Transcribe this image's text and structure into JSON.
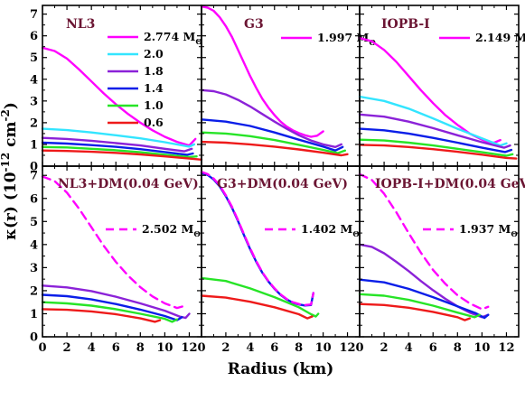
{
  "chart_data": {
    "type": "line",
    "xlabel": "Radius (km)",
    "ylabel": "κ(r) (10-12 cm-2)",
    "ylabel_parts": {
      "kappa": "κ(r) (10",
      "exp1": "-12",
      "unit": " cm",
      "exp2": "-2",
      "close": ")"
    },
    "xlim": [
      0,
      13
    ],
    "ylim": [
      0,
      7.4
    ],
    "x_ticks": [
      0,
      2,
      4,
      6,
      8,
      10,
      12
    ],
    "y_ticks_top": [
      0,
      1,
      2,
      3,
      4,
      5,
      6,
      7
    ],
    "y_ticks_bottom": [
      0,
      1,
      2,
      3,
      4,
      5,
      6,
      7
    ],
    "msun": "M",
    "msun_sub": "Θ",
    "colors": {
      "magenta": "#ff00ff",
      "cyan": "#33e5ff",
      "purple": "#8b22d8",
      "blue": "#0a1ee8",
      "green": "#27e427",
      "red": "#ee1a1a"
    },
    "panels": [
      {
        "title": "NL3",
        "legend": [
          {
            "label": "2.774",
            "color": "magenta"
          },
          {
            "label": "2.0",
            "color": "cyan"
          },
          {
            "label": "1.8",
            "color": "purple"
          },
          {
            "label": "1.4",
            "color": "blue"
          },
          {
            "label": "1.0",
            "color": "green"
          },
          {
            "label": "0.6",
            "color": "red"
          }
        ],
        "series": [
          {
            "color": "magenta",
            "dash": false,
            "x": [
              0,
              1,
              2,
              3,
              4,
              5,
              6,
              7,
              8,
              9,
              10,
              11,
              12,
              12.5
            ],
            "y": [
              5.45,
              5.3,
              4.95,
              4.45,
              3.9,
              3.35,
              2.85,
              2.4,
              2.0,
              1.65,
              1.35,
              1.12,
              0.95,
              1.25
            ]
          },
          {
            "color": "cyan",
            "dash": false,
            "x": [
              0,
              2,
              4,
              6,
              8,
              10,
              12,
              12.4
            ],
            "y": [
              1.72,
              1.66,
              1.55,
              1.42,
              1.28,
              1.1,
              0.9,
              1.0
            ]
          },
          {
            "color": "purple",
            "dash": false,
            "x": [
              0,
              2,
              4,
              6,
              8,
              10,
              11.6,
              12.2
            ],
            "y": [
              1.3,
              1.25,
              1.17,
              1.06,
              0.95,
              0.8,
              0.68,
              0.8
            ]
          },
          {
            "color": "blue",
            "dash": false,
            "x": [
              0,
              2,
              4,
              6,
              8,
              10,
              11.8,
              12.3
            ],
            "y": [
              1.08,
              1.04,
              0.97,
              0.89,
              0.78,
              0.65,
              0.52,
              0.58
            ]
          },
          {
            "color": "green",
            "dash": false,
            "x": [
              0,
              2,
              4,
              6,
              8,
              10,
              12,
              12.6
            ],
            "y": [
              0.88,
              0.86,
              0.8,
              0.73,
              0.64,
              0.53,
              0.42,
              0.45
            ]
          },
          {
            "color": "red",
            "dash": false,
            "x": [
              0,
              2,
              4,
              6,
              8,
              10,
              12,
              13
            ],
            "y": [
              0.72,
              0.7,
              0.66,
              0.61,
              0.54,
              0.45,
              0.35,
              0.3
            ]
          }
        ]
      },
      {
        "title": "G3",
        "legend": [
          {
            "label": "1.997",
            "color": "magenta"
          }
        ],
        "series": [
          {
            "color": "magenta",
            "dash": false,
            "x": [
              0,
              0.5,
              1,
              1.5,
              2,
              2.5,
              3,
              3.5,
              4,
              4.5,
              5,
              5.5,
              6,
              6.5,
              7,
              7.5,
              8,
              8.5,
              9,
              9.5,
              10
            ],
            "y": [
              7.35,
              7.3,
              7.15,
              6.85,
              6.45,
              5.95,
              5.35,
              4.75,
              4.15,
              3.6,
              3.1,
              2.7,
              2.35,
              2.05,
              1.82,
              1.65,
              1.52,
              1.42,
              1.35,
              1.4,
              1.6
            ]
          },
          {
            "color": "purple",
            "dash": false,
            "x": [
              0,
              1,
              2,
              3,
              4,
              5,
              6,
              7,
              8,
              9,
              10,
              11,
              11.5
            ],
            "y": [
              3.5,
              3.45,
              3.3,
              3.05,
              2.75,
              2.4,
              2.05,
              1.72,
              1.42,
              1.18,
              1.0,
              0.88,
              1.0
            ]
          },
          {
            "color": "blue",
            "dash": false,
            "x": [
              0,
              2,
              4,
              6,
              8,
              10,
              11,
              11.6
            ],
            "y": [
              2.15,
              2.05,
              1.85,
              1.55,
              1.22,
              0.9,
              0.72,
              0.88
            ]
          },
          {
            "color": "green",
            "dash": false,
            "x": [
              0,
              2,
              4,
              6,
              8,
              10,
              11.2,
              11.8
            ],
            "y": [
              1.55,
              1.5,
              1.38,
              1.2,
              0.98,
              0.75,
              0.6,
              0.72
            ]
          },
          {
            "color": "red",
            "dash": false,
            "x": [
              0,
              2,
              4,
              6,
              8,
              10,
              11.5,
              12
            ],
            "y": [
              1.12,
              1.08,
              1.0,
              0.9,
              0.77,
              0.62,
              0.5,
              0.55
            ]
          }
        ]
      },
      {
        "title": "IOPB-I",
        "legend": [
          {
            "label": "2.149",
            "color": "magenta"
          }
        ],
        "series": [
          {
            "color": "magenta",
            "dash": false,
            "x": [
              0,
              1,
              2,
              3,
              4,
              5,
              6,
              7,
              8,
              9,
              10,
              10.5,
              11,
              11.5
            ],
            "y": [
              5.9,
              5.75,
              5.35,
              4.8,
              4.15,
              3.5,
              2.9,
              2.35,
              1.9,
              1.5,
              1.22,
              1.1,
              1.08,
              1.2
            ]
          },
          {
            "color": "cyan",
            "dash": false,
            "x": [
              0,
              2,
              4,
              6,
              8,
              10,
              11.5,
              12
            ],
            "y": [
              3.2,
              3.0,
              2.65,
              2.2,
              1.72,
              1.28,
              0.95,
              1.05
            ]
          },
          {
            "color": "purple",
            "dash": false,
            "x": [
              0,
              2,
              4,
              6,
              8,
              10,
              11.8,
              12.3
            ],
            "y": [
              2.38,
              2.28,
              2.05,
              1.75,
              1.42,
              1.1,
              0.85,
              0.95
            ]
          },
          {
            "color": "blue",
            "dash": false,
            "x": [
              0,
              2,
              4,
              6,
              8,
              10,
              11.9,
              12.4
            ],
            "y": [
              1.72,
              1.65,
              1.5,
              1.3,
              1.08,
              0.85,
              0.65,
              0.75
            ]
          },
          {
            "color": "green",
            "dash": false,
            "x": [
              0,
              2,
              4,
              6,
              8,
              10,
              12,
              12.5
            ],
            "y": [
              1.22,
              1.18,
              1.08,
              0.95,
              0.8,
              0.64,
              0.48,
              0.55
            ]
          },
          {
            "color": "red",
            "dash": false,
            "x": [
              0,
              2,
              4,
              6,
              8,
              10,
              12,
              12.8
            ],
            "y": [
              0.98,
              0.95,
              0.88,
              0.78,
              0.66,
              0.53,
              0.38,
              0.35
            ]
          }
        ]
      },
      {
        "title": "NL3+DM(0.04 GeV)",
        "legend": [
          {
            "label": "2.502",
            "color": "magenta",
            "dash": true
          }
        ],
        "series": [
          {
            "color": "magenta",
            "dash": true,
            "x": [
              0,
              1,
              2,
              3,
              4,
              5,
              6,
              7,
              8,
              9,
              10,
              11,
              11.7
            ],
            "y": [
              6.95,
              6.75,
              6.25,
              5.55,
              4.75,
              3.95,
              3.25,
              2.65,
              2.15,
              1.75,
              1.45,
              1.25,
              1.35
            ]
          },
          {
            "color": "purple",
            "dash": false,
            "x": [
              0,
              2,
              4,
              6,
              8,
              10,
              11.2,
              11.7,
              12
            ],
            "y": [
              2.22,
              2.14,
              1.98,
              1.74,
              1.45,
              1.13,
              0.88,
              0.82,
              1.0
            ]
          },
          {
            "color": "blue",
            "dash": false,
            "x": [
              0,
              2,
              4,
              6,
              8,
              10,
              11,
              11.4
            ],
            "y": [
              1.82,
              1.76,
              1.62,
              1.42,
              1.18,
              0.9,
              0.72,
              0.85
            ]
          },
          {
            "color": "green",
            "dash": false,
            "x": [
              0,
              2,
              4,
              6,
              8,
              10,
              10.6,
              11
            ],
            "y": [
              1.5,
              1.45,
              1.35,
              1.2,
              1.0,
              0.78,
              0.65,
              0.75
            ]
          },
          {
            "color": "red",
            "dash": false,
            "x": [
              0,
              2,
              4,
              6,
              8,
              9.2,
              9.6
            ],
            "y": [
              1.2,
              1.17,
              1.1,
              0.98,
              0.8,
              0.65,
              0.72
            ]
          }
        ]
      },
      {
        "title": "G3+DM(0.04 GeV)",
        "legend": [
          {
            "label": "1.402",
            "color": "magenta",
            "dash": true
          }
        ],
        "series": [
          {
            "color": "blue",
            "dash": false,
            "x": [
              0,
              0.5,
              1,
              1.5,
              2,
              2.5,
              3,
              3.5,
              4,
              4.5,
              5,
              5.5,
              6,
              6.5,
              7,
              7.5,
              8,
              8.5,
              9,
              9.2
            ],
            "y": [
              7.1,
              7.02,
              6.82,
              6.52,
              6.1,
              5.6,
              5.02,
              4.4,
              3.8,
              3.25,
              2.78,
              2.4,
              2.08,
              1.82,
              1.62,
              1.48,
              1.4,
              1.36,
              1.38,
              1.9
            ]
          },
          {
            "color": "magenta",
            "dash": true,
            "x": [
              0,
              0.5,
              1,
              1.5,
              2,
              2.5,
              3,
              3.5,
              4,
              4.5,
              5,
              5.5,
              6,
              6.5,
              7,
              7.5,
              8,
              8.5,
              9,
              9.2
            ],
            "y": [
              7.15,
              7.06,
              6.86,
              6.56,
              6.14,
              5.64,
              5.06,
              4.44,
              3.84,
              3.28,
              2.8,
              2.42,
              2.1,
              1.84,
              1.64,
              1.5,
              1.42,
              1.38,
              1.4,
              1.9
            ]
          },
          {
            "color": "green",
            "dash": false,
            "x": [
              0,
              2,
              4,
              6,
              8,
              9,
              9.4,
              9.6
            ],
            "y": [
              2.55,
              2.42,
              2.1,
              1.72,
              1.28,
              0.98,
              0.88,
              1.0
            ]
          },
          {
            "color": "red",
            "dash": false,
            "x": [
              0,
              2,
              4,
              6,
              8,
              8.7,
              9.1
            ],
            "y": [
              1.78,
              1.7,
              1.52,
              1.28,
              0.98,
              0.8,
              0.88
            ]
          }
        ]
      },
      {
        "title": "IOPB-I+DM(0.04 GeV)",
        "legend": [
          {
            "label": "1.937",
            "color": "magenta",
            "dash": true
          }
        ],
        "series": [
          {
            "color": "magenta",
            "dash": true,
            "x": [
              0,
              1,
              2,
              3,
              4,
              5,
              6,
              7,
              8,
              9,
              10,
              10.5
            ],
            "y": [
              7.05,
              6.8,
              6.2,
              5.4,
              4.5,
              3.65,
              2.9,
              2.3,
              1.8,
              1.45,
              1.2,
              1.3
            ]
          },
          {
            "color": "purple",
            "dash": false,
            "x": [
              0,
              1,
              2,
              3,
              4,
              5,
              6,
              7,
              8,
              9,
              10,
              10.5
            ],
            "y": [
              4.0,
              3.9,
              3.62,
              3.25,
              2.85,
              2.42,
              2.02,
              1.65,
              1.32,
              1.05,
              0.85,
              0.95
            ]
          },
          {
            "color": "blue",
            "dash": false,
            "x": [
              0,
              2,
              4,
              6,
              8,
              9.5,
              10.2,
              10.5
            ],
            "y": [
              2.48,
              2.36,
              2.08,
              1.72,
              1.32,
              1.02,
              0.82,
              0.95
            ]
          },
          {
            "color": "green",
            "dash": false,
            "x": [
              0,
              2,
              4,
              6,
              8,
              9.4,
              9.8
            ],
            "y": [
              1.85,
              1.78,
              1.6,
              1.35,
              1.05,
              0.85,
              0.95
            ]
          },
          {
            "color": "red",
            "dash": false,
            "x": [
              0,
              2,
              4,
              6,
              8,
              8.6,
              9.0
            ],
            "y": [
              1.42,
              1.38,
              1.26,
              1.08,
              0.85,
              0.72,
              0.8
            ]
          }
        ]
      }
    ]
  }
}
